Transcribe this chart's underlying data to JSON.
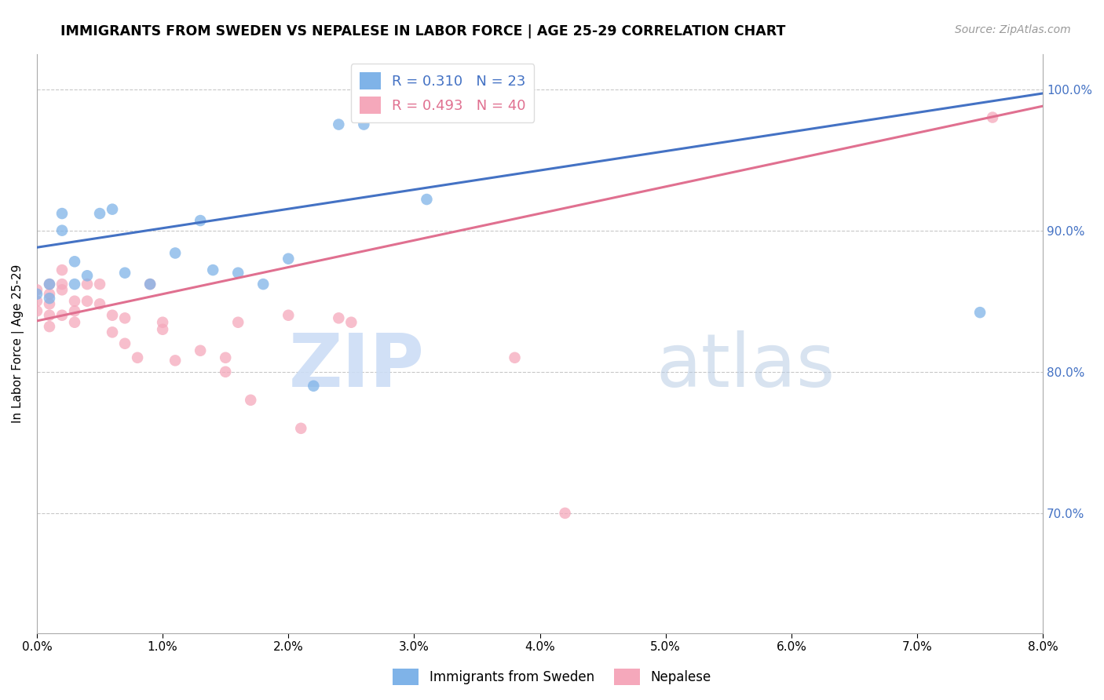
{
  "title": "IMMIGRANTS FROM SWEDEN VS NEPALESE IN LABOR FORCE | AGE 25-29 CORRELATION CHART",
  "source": "Source: ZipAtlas.com",
  "ylabel": "In Labor Force | Age 25-29",
  "ytick_values": [
    1.0,
    0.9,
    0.8,
    0.7
  ],
  "ytick_labels_right": [
    "100.0%",
    "90.0%",
    "80.0%",
    "70.0%"
  ],
  "xlim": [
    0.0,
    0.08
  ],
  "ylim": [
    0.615,
    1.025
  ],
  "legend_blue_R": "R = 0.310",
  "legend_blue_N": "N = 23",
  "legend_pink_R": "R = 0.493",
  "legend_pink_N": "N = 40",
  "blue_color": "#7fb3e8",
  "pink_color": "#f5a8bb",
  "blue_line_color": "#4472c4",
  "pink_line_color": "#e07090",
  "sweden_x": [
    0.0,
    0.001,
    0.001,
    0.002,
    0.002,
    0.003,
    0.003,
    0.004,
    0.005,
    0.006,
    0.007,
    0.009,
    0.011,
    0.013,
    0.014,
    0.016,
    0.018,
    0.02,
    0.022,
    0.024,
    0.026,
    0.031,
    0.075
  ],
  "sweden_y": [
    0.855,
    0.862,
    0.852,
    0.9,
    0.912,
    0.878,
    0.862,
    0.868,
    0.912,
    0.915,
    0.87,
    0.862,
    0.884,
    0.907,
    0.872,
    0.87,
    0.862,
    0.88,
    0.79,
    0.975,
    0.975,
    0.922,
    0.842
  ],
  "nepal_x": [
    0.0,
    0.0,
    0.0,
    0.001,
    0.001,
    0.001,
    0.001,
    0.001,
    0.002,
    0.002,
    0.002,
    0.002,
    0.003,
    0.003,
    0.003,
    0.004,
    0.004,
    0.005,
    0.005,
    0.006,
    0.006,
    0.007,
    0.007,
    0.008,
    0.009,
    0.01,
    0.01,
    0.011,
    0.013,
    0.015,
    0.015,
    0.016,
    0.017,
    0.02,
    0.021,
    0.024,
    0.025,
    0.038,
    0.042,
    0.076
  ],
  "nepal_y": [
    0.858,
    0.85,
    0.843,
    0.862,
    0.855,
    0.848,
    0.84,
    0.832,
    0.862,
    0.858,
    0.84,
    0.872,
    0.85,
    0.843,
    0.835,
    0.862,
    0.85,
    0.862,
    0.848,
    0.84,
    0.828,
    0.838,
    0.82,
    0.81,
    0.862,
    0.835,
    0.83,
    0.808,
    0.815,
    0.81,
    0.8,
    0.835,
    0.78,
    0.84,
    0.76,
    0.838,
    0.835,
    0.81,
    0.7,
    0.98
  ],
  "blue_trendline_x": [
    0.0,
    0.08
  ],
  "blue_trendline_y": [
    0.888,
    0.997
  ],
  "pink_trendline_x": [
    0.0,
    0.08
  ],
  "pink_trendline_y": [
    0.836,
    0.988
  ],
  "watermark_zip": "ZIP",
  "watermark_atlas": "atlas",
  "marker_size": 110,
  "grid_color": "#c8c8c8",
  "right_axis_color": "#4472c4",
  "legend_bottom_blue": "Immigrants from Sweden",
  "legend_bottom_pink": "Nepalese"
}
